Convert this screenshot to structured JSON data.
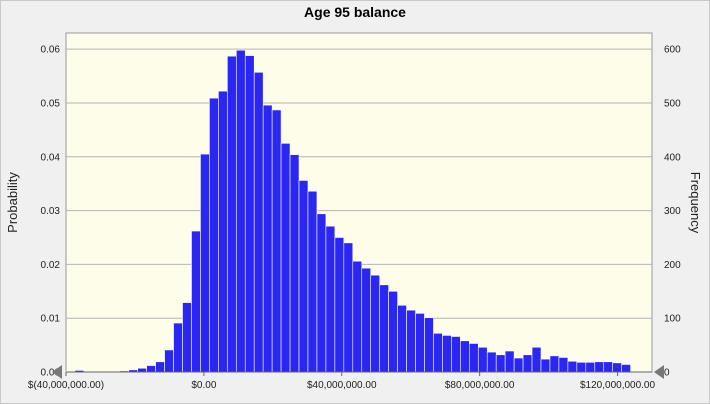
{
  "chart_data": {
    "type": "bar",
    "title": "Age 95 balance",
    "ylabel_left": "Probability",
    "ylabel_right": "Frequency",
    "xlabel": "",
    "x_ticks": [
      "$(40,000,000.00)",
      "$0.00",
      "$40,000,000.00",
      "$80,000,000.00",
      "$120,000,000.00"
    ],
    "x_tick_values": [
      -40000000,
      0,
      40000000,
      80000000,
      120000000
    ],
    "y_left_ticks": [
      "0.00",
      "0.01",
      "0.02",
      "0.03",
      "0.04",
      "0.05",
      "0.06"
    ],
    "y_right_ticks": [
      "0",
      "100",
      "200",
      "300",
      "400",
      "500",
      "600"
    ],
    "ylim": [
      0,
      0.063
    ],
    "xlim": [
      -40000000,
      130000000
    ],
    "bin_width": 2600000,
    "bin_start": -40000000,
    "values": [
      0.0001,
      0.0003,
      0.0001,
      0.0001,
      0.0001,
      0.0001,
      0.0002,
      0.0004,
      0.0007,
      0.0012,
      0.0019,
      0.0041,
      0.0091,
      0.0129,
      0.0262,
      0.0405,
      0.0509,
      0.0522,
      0.0587,
      0.0598,
      0.0588,
      0.0557,
      0.0496,
      0.0487,
      0.0425,
      0.0404,
      0.0356,
      0.0336,
      0.0294,
      0.0271,
      0.025,
      0.024,
      0.0206,
      0.0193,
      0.018,
      0.0162,
      0.015,
      0.0124,
      0.0115,
      0.0109,
      0.0101,
      0.0072,
      0.0068,
      0.0066,
      0.0058,
      0.0053,
      0.0046,
      0.0037,
      0.0032,
      0.0039,
      0.0026,
      0.0032,
      0.0046,
      0.0024,
      0.003,
      0.0027,
      0.002,
      0.0018,
      0.0018,
      0.0019,
      0.0019,
      0.0017,
      0.0014
    ],
    "bar_color": "#2a27f2",
    "plot_bg": "#fefde9",
    "grid": true
  }
}
